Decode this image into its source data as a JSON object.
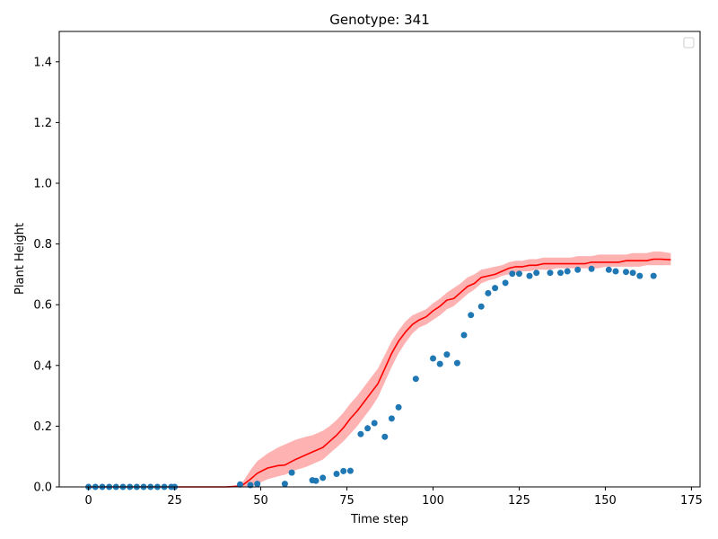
{
  "chart_data": {
    "type": "line",
    "title": "Genotype: 341",
    "xlabel": "Time step",
    "ylabel": "Plant Height",
    "xlim": [
      -8.5,
      177.5
    ],
    "ylim": [
      0,
      1.5
    ],
    "xticks": [
      0,
      25,
      50,
      75,
      100,
      125,
      150,
      175
    ],
    "yticks": [
      0.0,
      0.2,
      0.4,
      0.6,
      0.8,
      1.0,
      1.2,
      1.4
    ],
    "grid": false,
    "legend": "top-right (empty)",
    "colors": {
      "line": "#ff0000",
      "band": "#ff0000",
      "points": "#1f77b4"
    },
    "series": [
      {
        "kind": "line",
        "x": [
          0,
          10,
          20,
          30,
          40,
          43,
          45,
          47,
          49,
          52,
          55,
          57,
          60,
          63,
          65,
          68,
          70,
          72,
          74,
          76,
          78,
          80,
          82,
          84,
          86,
          88,
          90,
          92,
          94,
          96,
          98,
          100,
          102,
          104,
          106,
          108,
          110,
          112,
          114,
          116,
          118,
          120,
          122,
          124,
          126,
          128,
          130,
          132,
          134,
          136,
          138,
          140,
          142,
          144,
          146,
          148,
          150,
          152,
          154,
          156,
          158,
          160,
          162,
          164,
          166,
          169
        ],
        "y": [
          0.0,
          0.0,
          0.0,
          0.0,
          0.0,
          0.002,
          0.008,
          0.025,
          0.045,
          0.062,
          0.07,
          0.072,
          0.09,
          0.105,
          0.115,
          0.13,
          0.15,
          0.17,
          0.195,
          0.225,
          0.25,
          0.28,
          0.31,
          0.34,
          0.39,
          0.44,
          0.48,
          0.51,
          0.535,
          0.55,
          0.56,
          0.58,
          0.595,
          0.615,
          0.62,
          0.64,
          0.66,
          0.67,
          0.69,
          0.695,
          0.7,
          0.71,
          0.72,
          0.725,
          0.725,
          0.73,
          0.73,
          0.735,
          0.735,
          0.735,
          0.735,
          0.735,
          0.735,
          0.735,
          0.74,
          0.74,
          0.74,
          0.74,
          0.74,
          0.745,
          0.745,
          0.745,
          0.745,
          0.75,
          0.75,
          0.748
        ],
        "lower": [
          0.0,
          0.0,
          0.0,
          0.0,
          0.0,
          0.0,
          0.0,
          0.0,
          0.01,
          0.025,
          0.035,
          0.04,
          0.055,
          0.065,
          0.075,
          0.09,
          0.11,
          0.13,
          0.15,
          0.175,
          0.2,
          0.23,
          0.26,
          0.295,
          0.345,
          0.395,
          0.44,
          0.475,
          0.505,
          0.525,
          0.535,
          0.55,
          0.565,
          0.585,
          0.595,
          0.615,
          0.635,
          0.65,
          0.67,
          0.68,
          0.685,
          0.695,
          0.7,
          0.705,
          0.71,
          0.71,
          0.715,
          0.715,
          0.715,
          0.72,
          0.72,
          0.72,
          0.72,
          0.72,
          0.72,
          0.72,
          0.725,
          0.725,
          0.725,
          0.725,
          0.725,
          0.725,
          0.73,
          0.73,
          0.73,
          0.73
        ],
        "upper": [
          0.0,
          0.0,
          0.0,
          0.0,
          0.0,
          0.005,
          0.02,
          0.055,
          0.085,
          0.11,
          0.13,
          0.14,
          0.155,
          0.165,
          0.17,
          0.185,
          0.2,
          0.22,
          0.245,
          0.275,
          0.3,
          0.33,
          0.36,
          0.39,
          0.435,
          0.48,
          0.515,
          0.545,
          0.565,
          0.575,
          0.585,
          0.605,
          0.62,
          0.64,
          0.655,
          0.67,
          0.69,
          0.7,
          0.715,
          0.72,
          0.725,
          0.73,
          0.74,
          0.745,
          0.745,
          0.75,
          0.75,
          0.755,
          0.755,
          0.755,
          0.755,
          0.755,
          0.76,
          0.76,
          0.76,
          0.765,
          0.765,
          0.765,
          0.765,
          0.765,
          0.77,
          0.77,
          0.77,
          0.775,
          0.775,
          0.77
        ]
      },
      {
        "kind": "scatter",
        "x": [
          0,
          2,
          4,
          6,
          8,
          10,
          12,
          14,
          16,
          18,
          20,
          22,
          24,
          25,
          44,
          47,
          49,
          57,
          59,
          65,
          66,
          68,
          72,
          74,
          76,
          79,
          81,
          83,
          86,
          88,
          90,
          95,
          100,
          102,
          104,
          107,
          109,
          111,
          114,
          116,
          118,
          121,
          123,
          125,
          128,
          130,
          134,
          137,
          139,
          142,
          146,
          151,
          153,
          156,
          158,
          160,
          164
        ],
        "y": [
          0.0,
          0.0,
          0.0,
          0.0,
          0.0,
          0.0,
          0.0,
          0.0,
          0.0,
          0.0,
          0.0,
          0.0,
          0.0,
          0.0,
          0.008,
          0.006,
          0.01,
          0.01,
          0.047,
          0.022,
          0.02,
          0.03,
          0.043,
          0.052,
          0.053,
          0.174,
          0.193,
          0.21,
          0.165,
          0.225,
          0.262,
          0.356,
          0.423,
          0.405,
          0.436,
          0.408,
          0.5,
          0.566,
          0.594,
          0.638,
          0.655,
          0.672,
          0.702,
          0.702,
          0.695,
          0.705,
          0.705,
          0.705,
          0.71,
          0.715,
          0.718,
          0.715,
          0.71,
          0.708,
          0.705,
          0.695,
          0.695
        ]
      }
    ]
  }
}
